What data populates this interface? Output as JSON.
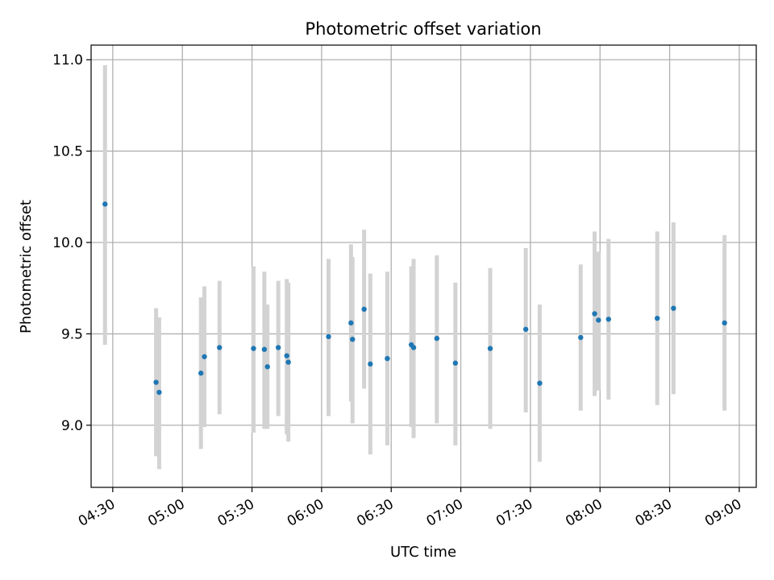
{
  "chart_data": {
    "type": "scatter",
    "title": "Photometric offset variation",
    "xlabel": "UTC time",
    "ylabel": "Photometric offset",
    "x_axis_kind": "time",
    "xlim": [
      "04:20:40",
      "09:07:20"
    ],
    "ylim": [
      8.66,
      11.08
    ],
    "grid": true,
    "x_ticks": [
      {
        "value": "04:30",
        "label": "04:30"
      },
      {
        "value": "05:00",
        "label": "05:00"
      },
      {
        "value": "05:30",
        "label": "05:30"
      },
      {
        "value": "06:00",
        "label": "06:00"
      },
      {
        "value": "06:30",
        "label": "06:30"
      },
      {
        "value": "07:00",
        "label": "07:00"
      },
      {
        "value": "07:30",
        "label": "07:30"
      },
      {
        "value": "08:00",
        "label": "08:00"
      },
      {
        "value": "08:30",
        "label": "08:30"
      },
      {
        "value": "09:00",
        "label": "09:00"
      }
    ],
    "y_ticks": [
      {
        "value": 9.0,
        "label": "9.0"
      },
      {
        "value": 9.5,
        "label": "9.5"
      },
      {
        "value": 10.0,
        "label": "10.0"
      },
      {
        "value": 10.5,
        "label": "10.5"
      },
      {
        "value": 11.0,
        "label": "11.0"
      }
    ],
    "point_color": "#1f77b4",
    "errorbar_color": "#d3d3d3",
    "points": [
      {
        "x": "04:26:40",
        "y": 10.21,
        "lo": 9.44,
        "hi": 10.97
      },
      {
        "x": "04:48:40",
        "y": 9.235,
        "lo": 8.83,
        "hi": 9.64
      },
      {
        "x": "04:50:00",
        "y": 9.18,
        "lo": 8.76,
        "hi": 9.59
      },
      {
        "x": "05:08:00",
        "y": 9.285,
        "lo": 8.87,
        "hi": 9.7
      },
      {
        "x": "05:09:30",
        "y": 9.375,
        "lo": 8.99,
        "hi": 9.76
      },
      {
        "x": "05:16:00",
        "y": 9.425,
        "lo": 9.06,
        "hi": 9.79
      },
      {
        "x": "05:30:40",
        "y": 9.42,
        "lo": 8.96,
        "hi": 9.87
      },
      {
        "x": "05:35:20",
        "y": 9.415,
        "lo": 8.98,
        "hi": 9.84
      },
      {
        "x": "05:36:40",
        "y": 9.32,
        "lo": 8.98,
        "hi": 9.66
      },
      {
        "x": "05:41:20",
        "y": 9.425,
        "lo": 9.05,
        "hi": 9.79
      },
      {
        "x": "05:45:00",
        "y": 9.38,
        "lo": 8.95,
        "hi": 9.8
      },
      {
        "x": "05:45:40",
        "y": 9.345,
        "lo": 8.91,
        "hi": 9.78
      },
      {
        "x": "06:03:00",
        "y": 9.485,
        "lo": 9.05,
        "hi": 9.91
      },
      {
        "x": "06:12:40",
        "y": 9.56,
        "lo": 9.13,
        "hi": 9.99
      },
      {
        "x": "06:13:20",
        "y": 9.47,
        "lo": 9.01,
        "hi": 9.92
      },
      {
        "x": "06:18:20",
        "y": 9.635,
        "lo": 9.2,
        "hi": 10.07
      },
      {
        "x": "06:21:00",
        "y": 9.335,
        "lo": 8.84,
        "hi": 9.83
      },
      {
        "x": "06:28:20",
        "y": 9.365,
        "lo": 8.89,
        "hi": 9.84
      },
      {
        "x": "06:38:40",
        "y": 9.44,
        "lo": 8.99,
        "hi": 9.87
      },
      {
        "x": "06:39:40",
        "y": 9.425,
        "lo": 8.93,
        "hi": 9.91
      },
      {
        "x": "06:49:40",
        "y": 9.475,
        "lo": 9.01,
        "hi": 9.93
      },
      {
        "x": "06:57:40",
        "y": 9.34,
        "lo": 8.89,
        "hi": 9.78
      },
      {
        "x": "07:12:40",
        "y": 9.42,
        "lo": 8.98,
        "hi": 9.86
      },
      {
        "x": "07:28:00",
        "y": 9.525,
        "lo": 9.07,
        "hi": 9.97
      },
      {
        "x": "07:34:00",
        "y": 9.23,
        "lo": 8.8,
        "hi": 9.66
      },
      {
        "x": "07:51:40",
        "y": 9.48,
        "lo": 9.08,
        "hi": 9.88
      },
      {
        "x": "07:57:40",
        "y": 9.61,
        "lo": 9.16,
        "hi": 10.06
      },
      {
        "x": "07:59:20",
        "y": 9.575,
        "lo": 9.19,
        "hi": 9.95
      },
      {
        "x": "08:03:40",
        "y": 9.58,
        "lo": 9.14,
        "hi": 10.02
      },
      {
        "x": "08:24:40",
        "y": 9.585,
        "lo": 9.11,
        "hi": 10.06
      },
      {
        "x": "08:31:40",
        "y": 9.64,
        "lo": 9.17,
        "hi": 10.11
      },
      {
        "x": "08:53:40",
        "y": 9.56,
        "lo": 9.08,
        "hi": 10.04
      }
    ]
  }
}
